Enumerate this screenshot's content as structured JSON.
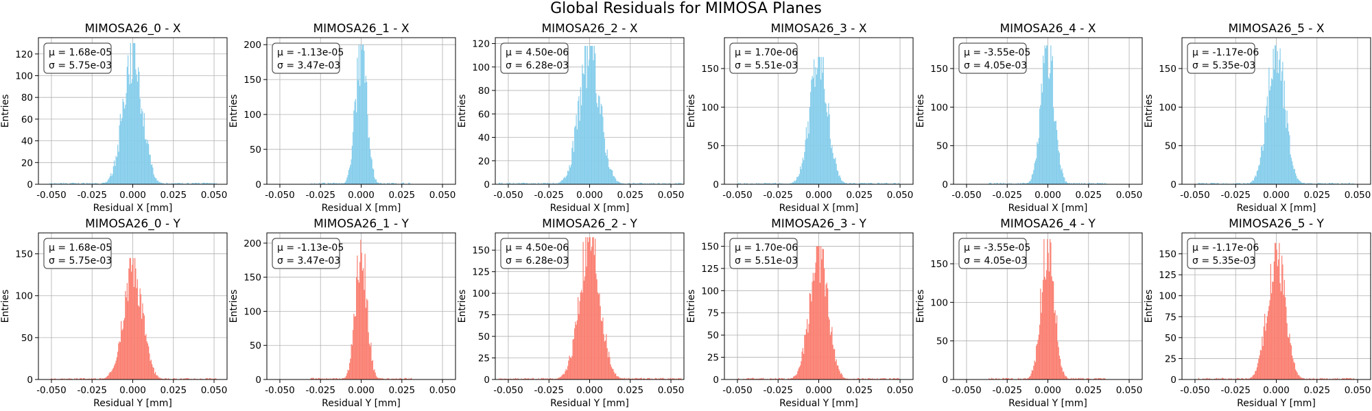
{
  "figure": {
    "title": "Global Residuals for MIMOSA Planes"
  },
  "style": {
    "x_color": "#87CEEB",
    "y_color": "#FA8072",
    "grid_color": "#b0b0b0"
  },
  "chart_data": [
    {
      "type": "bar",
      "title": "MIMOSA26_0 - X",
      "xlabel": "Residual X [mm]",
      "ylabel": "Entries",
      "xlim": [
        -0.058,
        0.058
      ],
      "ylim": [
        0,
        135
      ],
      "xticks": [
        "-0.050",
        "-0.025",
        "0.000",
        "0.025",
        "0.050"
      ],
      "yticks": [
        0,
        20,
        40,
        60,
        80,
        100,
        120
      ],
      "peak": 130,
      "sigma": 0.00575,
      "mu": 1.68e-05,
      "annotation": {
        "mu": "μ = 1.68e-05",
        "sigma": "σ = 5.75e-03"
      },
      "color": "#87CEEB",
      "grid": true
    },
    {
      "type": "bar",
      "title": "MIMOSA26_1 - X",
      "xlabel": "Residual X [mm]",
      "ylabel": "Entries",
      "xlim": [
        -0.058,
        0.058
      ],
      "ylim": [
        0,
        210
      ],
      "xticks": [
        "-0.050",
        "-0.025",
        "0.000",
        "0.025",
        "0.050"
      ],
      "yticks": [
        0,
        50,
        100,
        150,
        200
      ],
      "peak": 200,
      "sigma": 0.00347,
      "mu": -1.13e-05,
      "annotation": {
        "mu": "μ = -1.13e-05",
        "sigma": "σ = 3.47e-03"
      },
      "color": "#87CEEB",
      "grid": true
    },
    {
      "type": "bar",
      "title": "MIMOSA26_2 - X",
      "xlabel": "Residual X [mm]",
      "ylabel": "Entries",
      "xlim": [
        -0.058,
        0.058
      ],
      "ylim": [
        0,
        125
      ],
      "xticks": [
        "-0.050",
        "-0.025",
        "0.000",
        "0.025",
        "0.050"
      ],
      "yticks": [
        0,
        20,
        40,
        60,
        80,
        100,
        120
      ],
      "peak": 118,
      "sigma": 0.00628,
      "mu": 4.5e-06,
      "annotation": {
        "mu": "μ = 4.50e-06",
        "sigma": "σ = 6.28e-03"
      },
      "color": "#87CEEB",
      "grid": true
    },
    {
      "type": "bar",
      "title": "MIMOSA26_3 - X",
      "xlabel": "Residual X [mm]",
      "ylabel": "Entries",
      "xlim": [
        -0.058,
        0.058
      ],
      "ylim": [
        0,
        190
      ],
      "xticks": [
        "-0.050",
        "-0.025",
        "0.000",
        "0.025",
        "0.050"
      ],
      "yticks": [
        0,
        50,
        100,
        150
      ],
      "peak": 165,
      "sigma": 0.00551,
      "mu": 1.7e-06,
      "annotation": {
        "mu": "μ = 1.70e-06",
        "sigma": "σ = 5.51e-03"
      },
      "color": "#87CEEB",
      "grid": true
    },
    {
      "type": "bar",
      "title": "MIMOSA26_4 - X",
      "xlabel": "Residual X [mm]",
      "ylabel": "Entries",
      "xlim": [
        -0.058,
        0.058
      ],
      "ylim": [
        0,
        190
      ],
      "xticks": [
        "-0.050",
        "-0.025",
        "0.000",
        "0.025",
        "0.050"
      ],
      "yticks": [
        0,
        50,
        100,
        150
      ],
      "peak": 180,
      "sigma": 0.00405,
      "mu": -3.55e-05,
      "annotation": {
        "mu": "μ = -3.55e-05",
        "sigma": "σ = 4.05e-03"
      },
      "color": "#87CEEB",
      "grid": true
    },
    {
      "type": "bar",
      "title": "MIMOSA26_5 - X",
      "xlabel": "Residual X [mm]",
      "ylabel": "Entries",
      "xlim": [
        -0.058,
        0.058
      ],
      "ylim": [
        0,
        190
      ],
      "xticks": [
        "-0.050",
        "-0.025",
        "0.000",
        "0.025",
        "0.050"
      ],
      "yticks": [
        0,
        50,
        100,
        150
      ],
      "peak": 180,
      "sigma": 0.00535,
      "mu": -1.17e-06,
      "annotation": {
        "mu": "μ = -1.17e-06",
        "sigma": "σ = 5.35e-03"
      },
      "color": "#87CEEB",
      "grid": true
    },
    {
      "type": "bar",
      "title": "MIMOSA26_0 - Y",
      "xlabel": "Residual Y [mm]",
      "ylabel": "Entries",
      "xlim": [
        -0.058,
        0.058
      ],
      "ylim": [
        0,
        175
      ],
      "xticks": [
        "-0.050",
        "-0.025",
        "0.000",
        "0.025",
        "0.050"
      ],
      "yticks": [
        0,
        50,
        100,
        150
      ],
      "peak": 145,
      "sigma": 0.00575,
      "mu": 1.68e-05,
      "annotation": {
        "mu": "μ = 1.68e-05",
        "sigma": "σ = 5.75e-03"
      },
      "color": "#FA8072",
      "grid": true
    },
    {
      "type": "bar",
      "title": "MIMOSA26_1 - Y",
      "xlabel": "Residual Y [mm]",
      "ylabel": "Entries",
      "xlim": [
        -0.058,
        0.058
      ],
      "ylim": [
        0,
        215
      ],
      "xticks": [
        "-0.050",
        "-0.025",
        "0.000",
        "0.025",
        "0.050"
      ],
      "yticks": [
        0,
        50,
        100,
        150,
        200
      ],
      "peak": 205,
      "sigma": 0.00347,
      "mu": -1.13e-05,
      "annotation": {
        "mu": "μ = -1.13e-05",
        "sigma": "σ = 3.47e-03"
      },
      "color": "#FA8072",
      "grid": true
    },
    {
      "type": "bar",
      "title": "MIMOSA26_2 - Y",
      "xlabel": "Residual Y [mm]",
      "ylabel": "Entries",
      "xlim": [
        -0.058,
        0.058
      ],
      "ylim": [
        0,
        170
      ],
      "xticks": [
        "-0.050",
        "-0.025",
        "0.000",
        "0.025",
        "0.050"
      ],
      "yticks": [
        0,
        25,
        50,
        75,
        100,
        125,
        150
      ],
      "peak": 165,
      "sigma": 0.00628,
      "mu": 4.5e-06,
      "annotation": {
        "mu": "μ = 4.50e-06",
        "sigma": "σ = 6.28e-03"
      },
      "color": "#FA8072",
      "grid": true
    },
    {
      "type": "bar",
      "title": "MIMOSA26_3 - Y",
      "xlabel": "Residual Y [mm]",
      "ylabel": "Entries",
      "xlim": [
        -0.058,
        0.058
      ],
      "ylim": [
        0,
        165
      ],
      "xticks": [
        "-0.050",
        "-0.025",
        "0.000",
        "0.025",
        "0.050"
      ],
      "yticks": [
        0,
        25,
        50,
        75,
        100,
        125,
        150
      ],
      "peak": 150,
      "sigma": 0.00551,
      "mu": 1.7e-06,
      "annotation": {
        "mu": "μ = 1.70e-06",
        "sigma": "σ = 5.51e-03"
      },
      "color": "#FA8072",
      "grid": true
    },
    {
      "type": "bar",
      "title": "MIMOSA26_4 - Y",
      "xlabel": "Residual Y [mm]",
      "ylabel": "Entries",
      "xlim": [
        -0.058,
        0.058
      ],
      "ylim": [
        0,
        190
      ],
      "xticks": [
        "-0.050",
        "-0.025",
        "0.000",
        "0.025",
        "0.050"
      ],
      "yticks": [
        0,
        50,
        100,
        150
      ],
      "peak": 182,
      "sigma": 0.00405,
      "mu": -3.55e-05,
      "annotation": {
        "mu": "μ = -3.55e-05",
        "sigma": "σ = 4.05e-03"
      },
      "color": "#FA8072",
      "grid": true
    },
    {
      "type": "bar",
      "title": "MIMOSA26_5 - Y",
      "xlabel": "Residual Y [mm]",
      "ylabel": "Entries",
      "xlim": [
        -0.058,
        0.058
      ],
      "ylim": [
        0,
        175
      ],
      "xticks": [
        "-0.050",
        "-0.025",
        "0.000",
        "0.025",
        "0.050"
      ],
      "yticks": [
        0,
        25,
        50,
        75,
        100,
        125,
        150
      ],
      "peak": 163,
      "sigma": 0.00535,
      "mu": -1.17e-06,
      "annotation": {
        "mu": "μ = -1.17e-06",
        "sigma": "σ = 5.35e-03"
      },
      "color": "#FA8072",
      "grid": true
    }
  ]
}
